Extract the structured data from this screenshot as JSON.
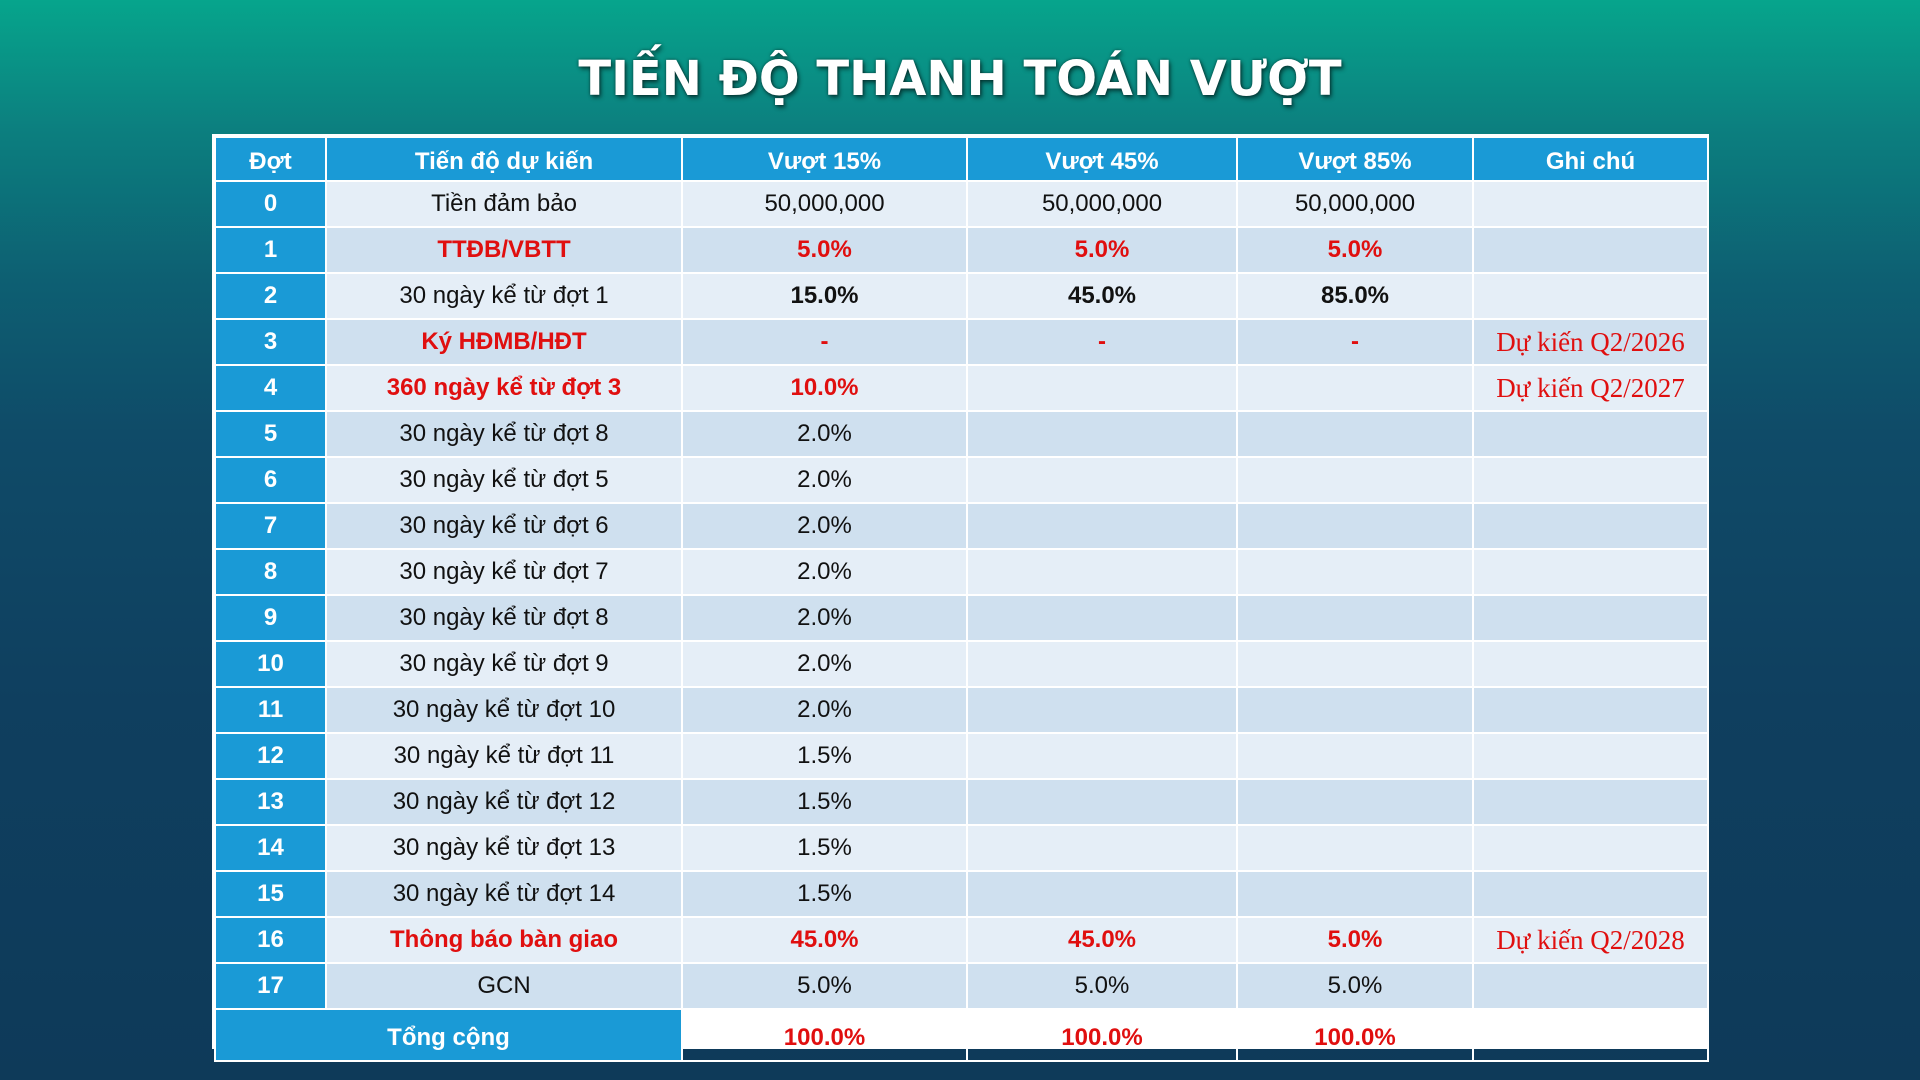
{
  "title": "TIẾN ĐỘ THANH TOÁN VƯỢT",
  "headers": [
    "Đợt",
    "Tiến độ dự kiến",
    "Vượt 15%",
    "Vượt 45%",
    "Vượt 85%",
    "Ghi chú"
  ],
  "rows": [
    {
      "num": "0",
      "desc": "Tiền đảm bảo",
      "v15": "50,000,000",
      "v45": "50,000,000",
      "v85": "50,000,000",
      "note": "",
      "style": "normal"
    },
    {
      "num": "1",
      "desc": "TTĐB/VBTT",
      "v15": "5.0%",
      "v45": "5.0%",
      "v85": "5.0%",
      "note": "",
      "style": "red"
    },
    {
      "num": "2",
      "desc": "30 ngày kể từ đợt 1",
      "v15": "15.0%",
      "v45": "45.0%",
      "v85": "85.0%",
      "note": "",
      "style": "boldvals"
    },
    {
      "num": "3",
      "desc": "Ký HĐMB/HĐT",
      "v15": "-",
      "v45": "-",
      "v85": "-",
      "note": "Dự kiến Q2/2026",
      "style": "red"
    },
    {
      "num": "4",
      "desc": "360 ngày kể từ đợt 3",
      "v15": "10.0%",
      "v45": "",
      "v85": "",
      "note": "Dự kiến Q2/2027",
      "style": "red"
    },
    {
      "num": "5",
      "desc": "30 ngày kể từ đợt 8",
      "v15": "2.0%",
      "v45": "",
      "v85": "",
      "note": "",
      "style": "normal"
    },
    {
      "num": "6",
      "desc": "30 ngày kể từ đợt 5",
      "v15": "2.0%",
      "v45": "",
      "v85": "",
      "note": "",
      "style": "normal"
    },
    {
      "num": "7",
      "desc": "30 ngày kể từ đợt 6",
      "v15": "2.0%",
      "v45": "",
      "v85": "",
      "note": "",
      "style": "normal"
    },
    {
      "num": "8",
      "desc": "30 ngày kể từ đợt 7",
      "v15": "2.0%",
      "v45": "",
      "v85": "",
      "note": "",
      "style": "normal"
    },
    {
      "num": "9",
      "desc": "30 ngày kể từ đợt 8",
      "v15": "2.0%",
      "v45": "",
      "v85": "",
      "note": "",
      "style": "normal"
    },
    {
      "num": "10",
      "desc": "30 ngày kể từ đợt 9",
      "v15": "2.0%",
      "v45": "",
      "v85": "",
      "note": "",
      "style": "normal"
    },
    {
      "num": "11",
      "desc": "30 ngày kể từ đợt 10",
      "v15": "2.0%",
      "v45": "",
      "v85": "",
      "note": "",
      "style": "normal"
    },
    {
      "num": "12",
      "desc": "30 ngày kể từ đợt 11",
      "v15": "1.5%",
      "v45": "",
      "v85": "",
      "note": "",
      "style": "normal"
    },
    {
      "num": "13",
      "desc": "30 ngày kể từ đợt 12",
      "v15": "1.5%",
      "v45": "",
      "v85": "",
      "note": "",
      "style": "normal"
    },
    {
      "num": "14",
      "desc": "30 ngày kể từ đợt 13",
      "v15": "1.5%",
      "v45": "",
      "v85": "",
      "note": "",
      "style": "normal"
    },
    {
      "num": "15",
      "desc": "30 ngày kể từ đợt 14",
      "v15": "1.5%",
      "v45": "",
      "v85": "",
      "note": "",
      "style": "normal"
    },
    {
      "num": "16",
      "desc": "Thông báo bàn giao",
      "v15": "45.0%",
      "v45": "45.0%",
      "v85": "5.0%",
      "note": "Dự kiến Q2/2028",
      "style": "red"
    },
    {
      "num": "17",
      "desc": "GCN",
      "v15": "5.0%",
      "v45": "5.0%",
      "v85": "5.0%",
      "note": "",
      "style": "normal"
    }
  ],
  "total": {
    "label": "Tổng cộng",
    "v15": "100.0%",
    "v45": "100.0%",
    "v85": "100.0%",
    "note": ""
  },
  "colors": {
    "header_blue": "#1a9ad6",
    "accent_red": "#e00f0f",
    "row_light": "#e5eef7",
    "row_dark": "#cfe0ef"
  }
}
